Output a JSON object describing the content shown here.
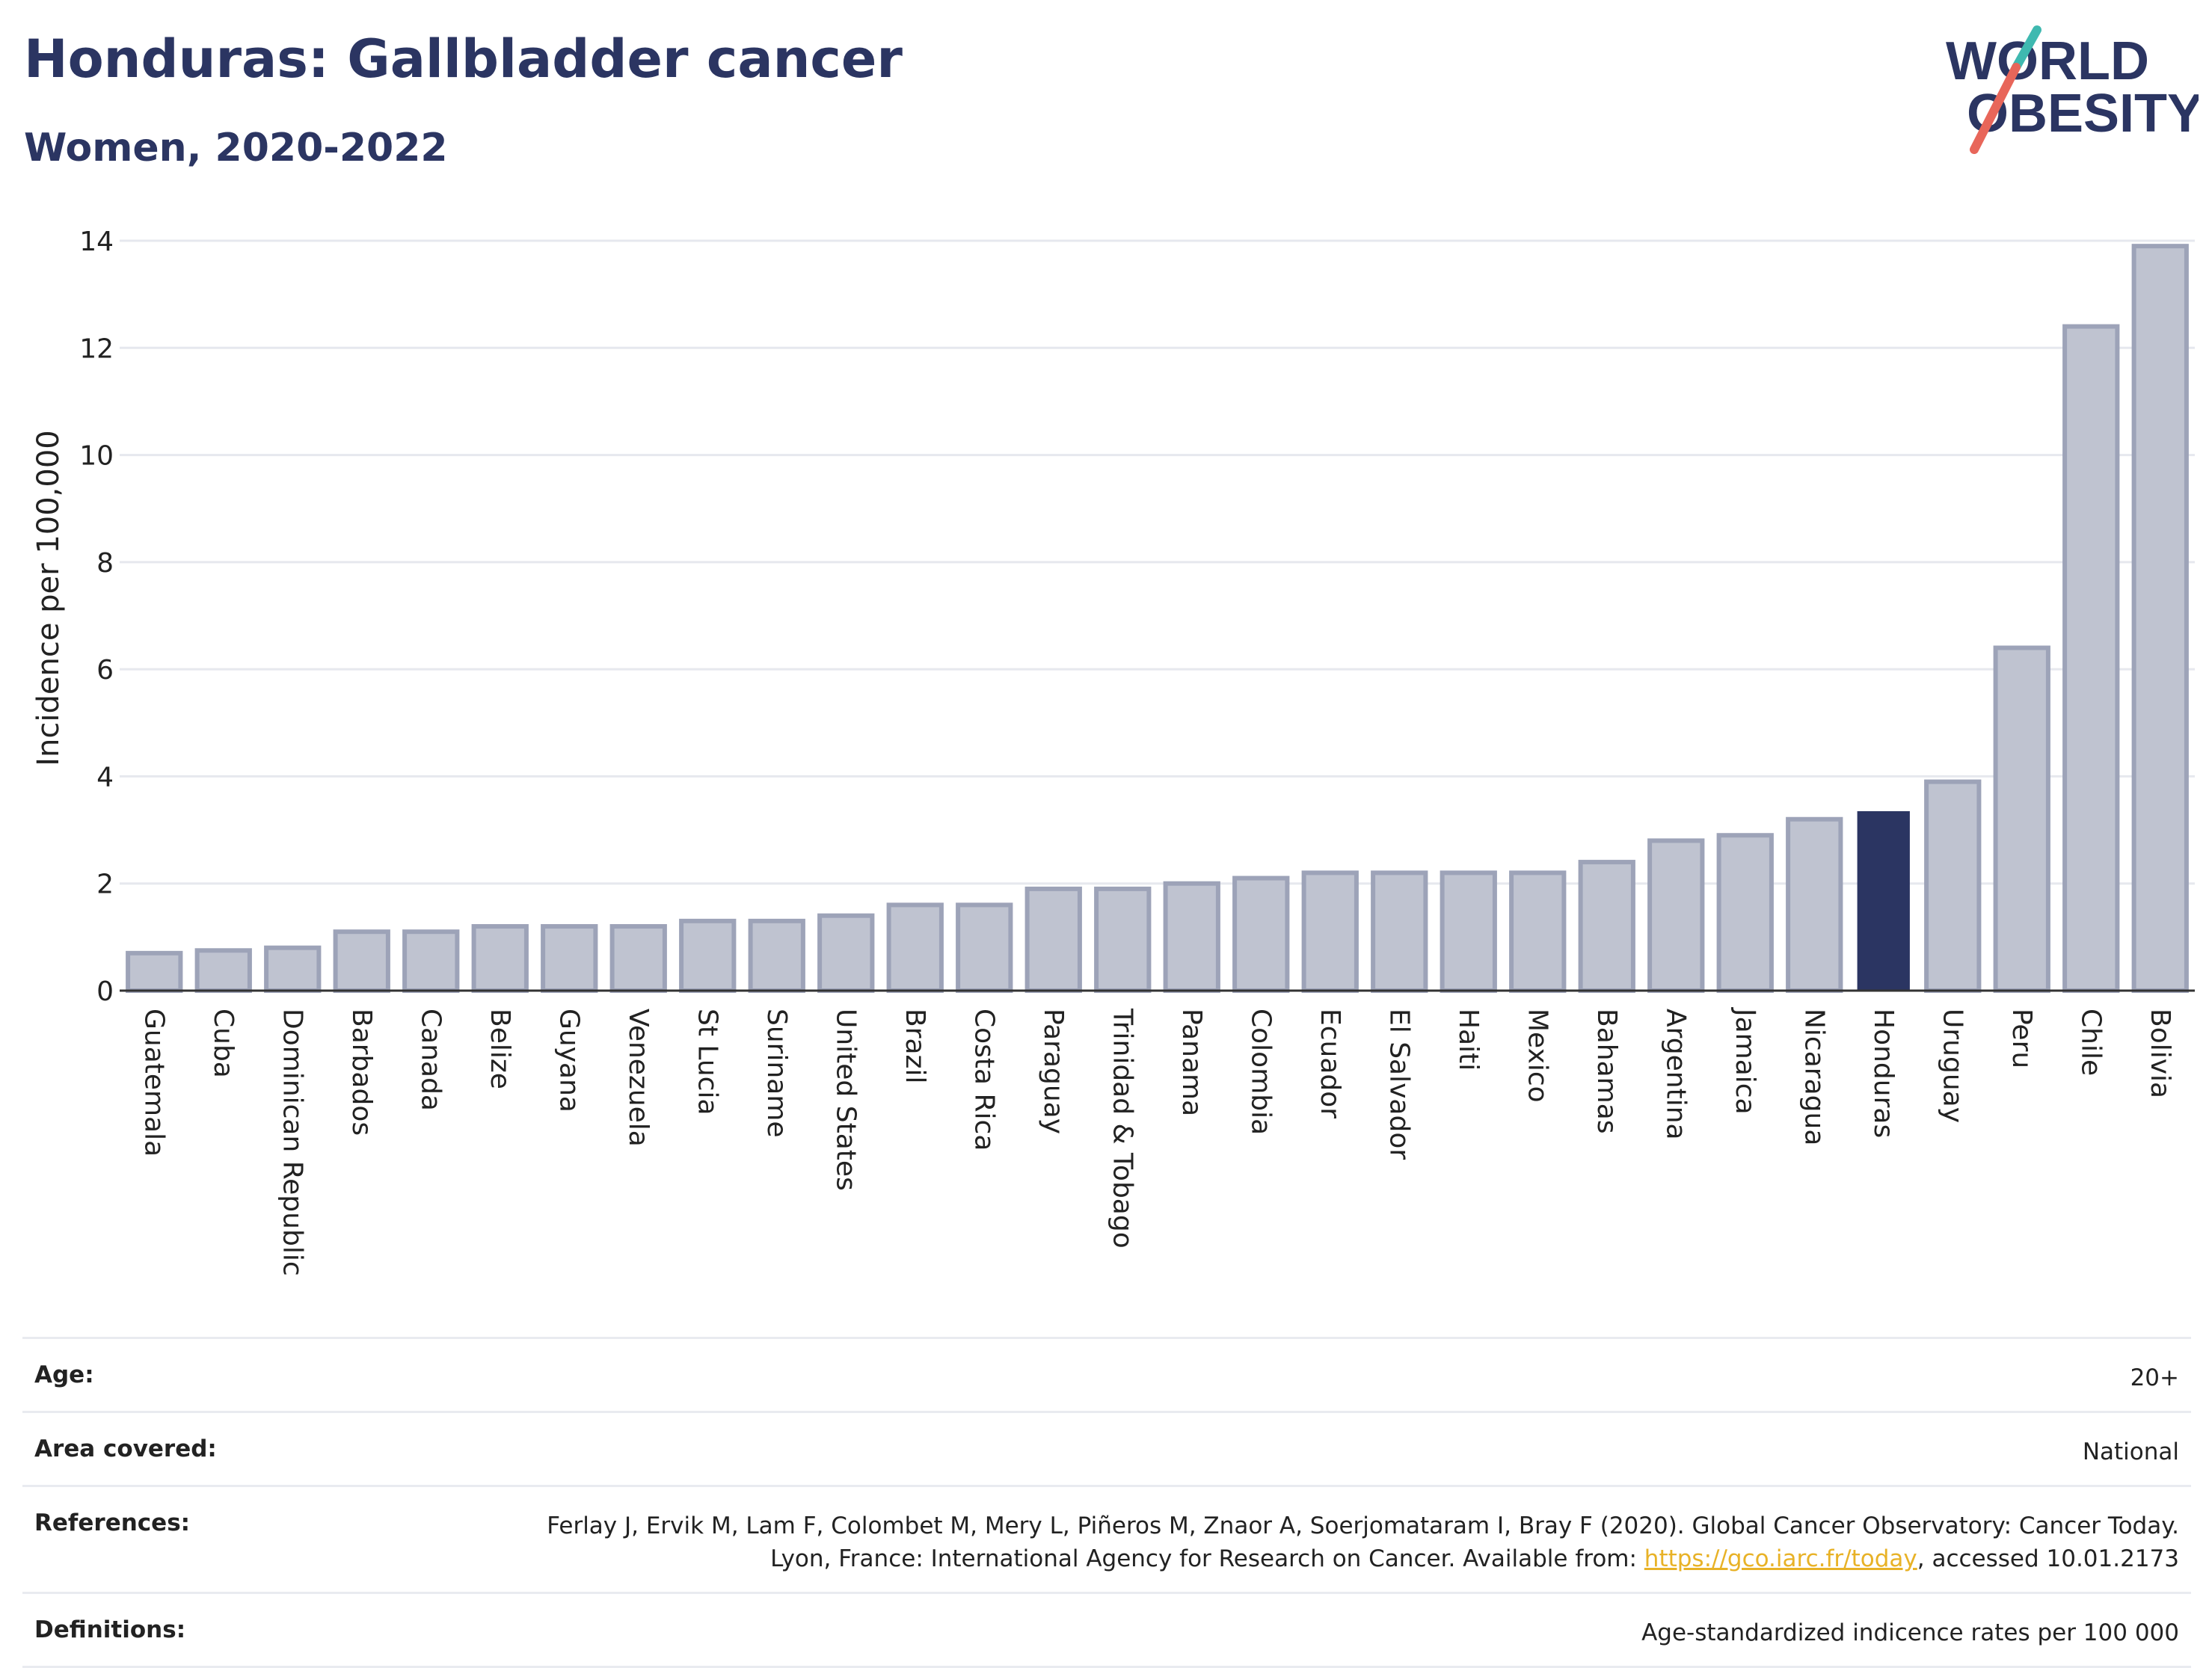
{
  "header": {
    "title": "Honduras: Gallbladder cancer",
    "subtitle": "Women, 2020-2022"
  },
  "logo": {
    "line1": "WORLD",
    "line2": "OBESITY",
    "colors": {
      "text": "#2b3562",
      "slash_teal": "#3fb9b0",
      "slash_red": "#e8665a"
    }
  },
  "chart_data": {
    "type": "bar",
    "ylabel": "Incidence per 100,000",
    "xlabel": "",
    "ylim": [
      0,
      14
    ],
    "yticks": [
      0,
      2,
      4,
      6,
      8,
      10,
      12,
      14
    ],
    "grid": true,
    "highlight": "Honduras",
    "colors": {
      "bar": "#bfc3d0",
      "bar_edge": "#9da3b8",
      "highlight": "#2b3562",
      "grid": "#e6e8ee",
      "axis": "#333333"
    },
    "categories": [
      "Guatemala",
      "Cuba",
      "Dominican Republic",
      "Barbados",
      "Canada",
      "Belize",
      "Guyana",
      "Venezuela",
      "St Lucia",
      "Suriname",
      "United States",
      "Brazil",
      "Costa Rica",
      "Paraguay",
      "Trinidad & Tobago",
      "Panama",
      "Colombia",
      "Ecuador",
      "El Salvador",
      "Haiti",
      "Mexico",
      "Bahamas",
      "Argentina",
      "Jamaica",
      "Nicaragua",
      "Honduras",
      "Uruguay",
      "Peru",
      "Chile",
      "Bolivia"
    ],
    "values": [
      0.7,
      0.75,
      0.8,
      1.1,
      1.1,
      1.2,
      1.2,
      1.2,
      1.3,
      1.3,
      1.4,
      1.6,
      1.6,
      1.9,
      1.9,
      2.0,
      2.1,
      2.2,
      2.2,
      2.2,
      2.2,
      2.4,
      2.8,
      2.9,
      3.2,
      3.35,
      3.9,
      6.4,
      12.4,
      13.9
    ]
  },
  "meta": {
    "age_label": "Age:",
    "age_value": "20+",
    "area_label": "Area covered:",
    "area_value": "National",
    "references_label": "References:",
    "references_text1": "Ferlay J, Ervik M, Lam F, Colombet M, Mery L, Piñeros M, Znaor A, Soerjomataram I, Bray F (2020). Global Cancer Observatory: Cancer Today. Lyon, France: International Agency for Research on Cancer. Available from: ",
    "references_link": "https://gco.iarc.fr/today",
    "references_text2": ", accessed 10.01.2173",
    "definitions_label": "Definitions:",
    "definitions_value": "Age-standardized indicence rates per 100 000"
  }
}
